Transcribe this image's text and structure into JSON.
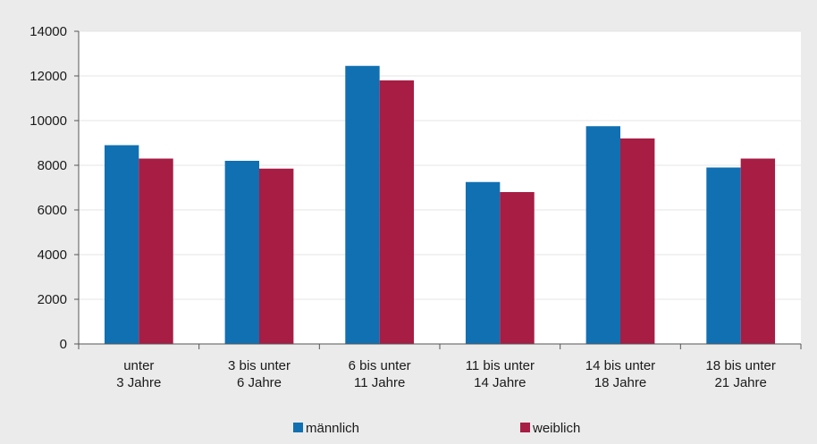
{
  "chart_data": {
    "type": "bar",
    "categories": [
      [
        "unter",
        "3 Jahre"
      ],
      [
        "3 bis unter",
        "6 Jahre"
      ],
      [
        "6 bis unter",
        "11 Jahre"
      ],
      [
        "11 bis unter",
        "14 Jahre"
      ],
      [
        "14 bis unter",
        "18 Jahre"
      ],
      [
        "18 bis unter",
        "21 Jahre"
      ]
    ],
    "series": [
      {
        "name": "männlich",
        "color": "#1170b2",
        "values": [
          8900,
          8200,
          12450,
          7250,
          9750,
          7900
        ]
      },
      {
        "name": "weiblich",
        "color": "#a71d44",
        "values": [
          8300,
          7850,
          11800,
          6800,
          9200,
          8300
        ]
      }
    ],
    "ylim": [
      0,
      14000
    ],
    "yticks": [
      "0",
      "2000",
      "4000",
      "6000",
      "8000",
      "10000",
      "12000",
      "14000"
    ],
    "grid": true,
    "legend": "bottom"
  }
}
